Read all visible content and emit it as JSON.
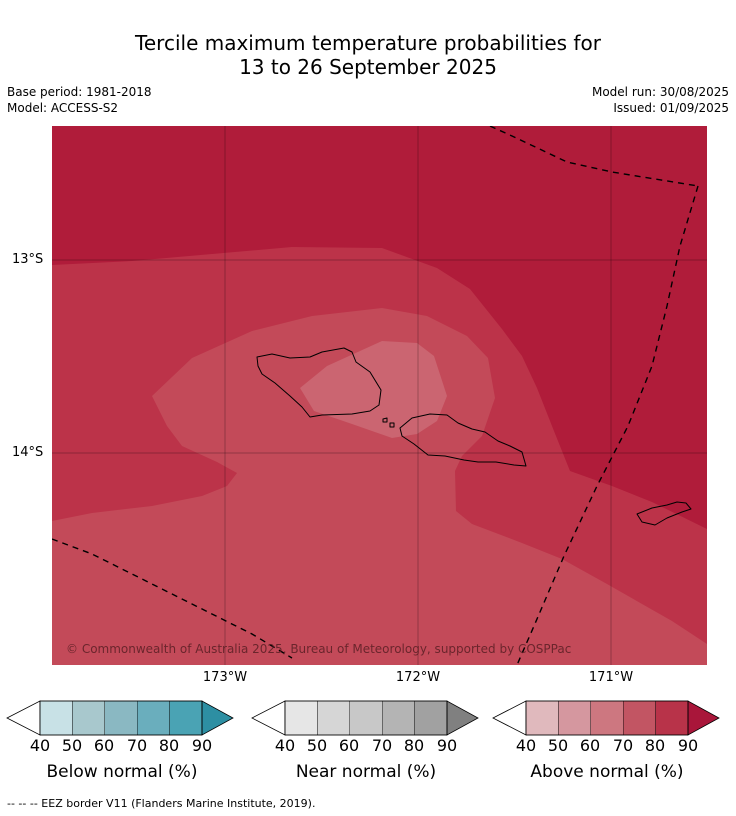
{
  "title": {
    "line1": "Tercile maximum temperature probabilities for",
    "line2": "13 to 26 September 2025"
  },
  "meta": {
    "base_period": "Base period: 1981-2018",
    "model": "Model: ACCESS-S2",
    "model_run": "Model run: 30/08/2025",
    "issued": "Issued: 01/09/2025"
  },
  "map": {
    "copyright": "© Commonwealth of Australia 2025, Bureau of Meteorology, supported by COSPPac",
    "lat_labels": [
      "13°S",
      "14°S"
    ],
    "lon_labels": [
      "173°W",
      "172°W",
      "171°W"
    ],
    "region_colors": {
      "above_90": "#b01c3a",
      "above_80": "#bc3349",
      "above_70": "#c34a59",
      "above_60": "#cb6571"
    }
  },
  "legend": {
    "ticks": [
      "40",
      "50",
      "60",
      "70",
      "80",
      "90"
    ],
    "bars": [
      {
        "label": "Below normal (%)",
        "colors": [
          "#ffffff",
          "#c8e1e6",
          "#a8c8cd",
          "#8ab8c2",
          "#6aaebd",
          "#4aa3b4",
          "#2d8fa3"
        ]
      },
      {
        "label": "Near normal (%)",
        "colors": [
          "#ffffff",
          "#e6e6e6",
          "#d6d6d6",
          "#c8c8c8",
          "#b4b4b4",
          "#a1a1a1",
          "#808080"
        ]
      },
      {
        "label": "Above normal (%)",
        "colors": [
          "#ffffff",
          "#e0b9bd",
          "#d5979f",
          "#cd7780",
          "#c25563",
          "#b83349",
          "#a9163a"
        ]
      }
    ]
  },
  "footer": "--  --  -- EEZ border V11 (Flanders Marine Institute, 2019)."
}
